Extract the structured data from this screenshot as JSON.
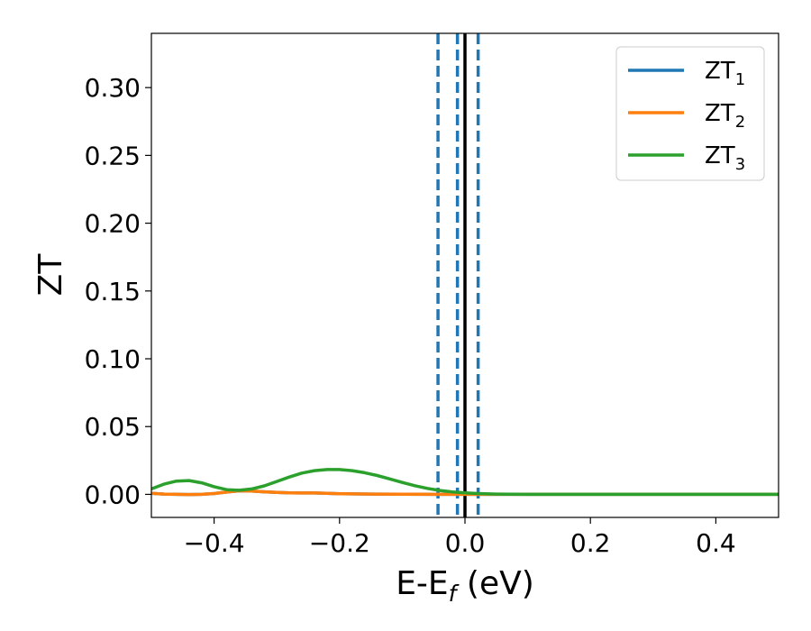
{
  "chart_data": {
    "type": "line",
    "xlabel": "E-E_f (eV)",
    "ylabel": "ZT",
    "xlim": [
      -0.5,
      0.5
    ],
    "ylim": [
      -0.017,
      0.34
    ],
    "x_ticks": [
      -0.4,
      -0.2,
      0.0,
      0.2,
      0.4
    ],
    "x_tick_labels": [
      "−0.4",
      "−0.2",
      "0.0",
      "0.2",
      "0.4"
    ],
    "y_ticks": [
      0.0,
      0.05,
      0.1,
      0.15,
      0.2,
      0.25,
      0.3
    ],
    "y_tick_labels": [
      "0.00",
      "0.05",
      "0.10",
      "0.15",
      "0.20",
      "0.25",
      "0.30"
    ],
    "grid": false,
    "legend_position": "top-right",
    "series": [
      {
        "name": "ZT_1",
        "label_main": "ZT",
        "label_sub": "1",
        "color": "#1f77b4",
        "x": [
          -0.5,
          -0.48,
          -0.46,
          -0.44,
          -0.42,
          -0.4,
          -0.38,
          -0.36,
          -0.34,
          -0.32,
          -0.3,
          -0.28,
          -0.26,
          -0.24,
          -0.22,
          -0.2,
          -0.15,
          -0.1,
          -0.05,
          0.0,
          0.05,
          0.1,
          0.2,
          0.3,
          0.4,
          0.5
        ],
        "y": [
          0.0008,
          0.0002,
          0.0,
          -0.0001,
          0.0,
          0.0006,
          0.0017,
          0.0026,
          0.0025,
          0.0019,
          0.0014,
          0.0011,
          0.001,
          0.001,
          0.0008,
          0.0005,
          0.0002,
          0.0001,
          0.0,
          0.0,
          0.0,
          0.0,
          0.0,
          0.0,
          0.0,
          0.0
        ]
      },
      {
        "name": "ZT_2",
        "label_main": "ZT",
        "label_sub": "2",
        "color": "#ff7f0e",
        "x": [
          -0.5,
          -0.48,
          -0.46,
          -0.44,
          -0.42,
          -0.4,
          -0.38,
          -0.36,
          -0.34,
          -0.32,
          -0.3,
          -0.28,
          -0.26,
          -0.24,
          -0.22,
          -0.2,
          -0.15,
          -0.1,
          -0.05,
          0.0,
          0.05,
          0.1,
          0.2,
          0.3,
          0.4,
          0.5
        ],
        "y": [
          0.0008,
          0.0002,
          0.0,
          -0.0001,
          0.0,
          0.0006,
          0.0017,
          0.0026,
          0.0025,
          0.0019,
          0.0014,
          0.0011,
          0.001,
          0.001,
          0.0008,
          0.0005,
          0.0002,
          0.0001,
          0.0,
          0.0,
          0.0,
          0.0,
          0.0,
          0.0,
          0.0,
          0.0
        ]
      },
      {
        "name": "ZT_3",
        "label_main": "ZT",
        "label_sub": "3",
        "color": "#2ca02c",
        "x": [
          -0.5,
          -0.48,
          -0.46,
          -0.44,
          -0.42,
          -0.4,
          -0.38,
          -0.36,
          -0.34,
          -0.32,
          -0.3,
          -0.28,
          -0.26,
          -0.24,
          -0.22,
          -0.2,
          -0.18,
          -0.16,
          -0.14,
          -0.12,
          -0.1,
          -0.08,
          -0.06,
          -0.04,
          -0.02,
          0.0,
          0.02,
          0.05,
          0.1,
          0.2,
          0.3,
          0.4,
          0.5
        ],
        "y": [
          0.004,
          0.0075,
          0.0098,
          0.0102,
          0.0085,
          0.0057,
          0.0035,
          0.003,
          0.004,
          0.0063,
          0.0095,
          0.0128,
          0.0157,
          0.0175,
          0.0183,
          0.0183,
          0.0175,
          0.016,
          0.0139,
          0.0114,
          0.0088,
          0.0064,
          0.0044,
          0.0029,
          0.0018,
          0.0011,
          0.0006,
          0.0002,
          0.0,
          0.0,
          0.0,
          0.0,
          0.0
        ]
      }
    ],
    "vlines": [
      {
        "x": -0.043,
        "style": "dashed",
        "color": "#1f77b4"
      },
      {
        "x": -0.012,
        "style": "dashed",
        "color": "#1f77b4"
      },
      {
        "x": 0.0,
        "style": "solid",
        "color": "#000000"
      },
      {
        "x": 0.021,
        "style": "dashed",
        "color": "#1f77b4"
      }
    ]
  }
}
